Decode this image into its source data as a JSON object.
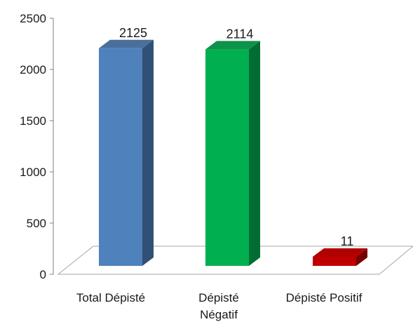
{
  "chart_data": {
    "type": "bar",
    "categories": [
      "Total Dépisté",
      "Dépisté\nNégatif",
      "Dépisté Positif"
    ],
    "values": [
      2125,
      2114,
      11
    ],
    "data_labels": [
      "2125",
      "2114",
      "11"
    ],
    "colors": [
      "#4f81bd",
      "#00b050",
      "#c00000"
    ],
    "yticks": [
      "0",
      "500",
      "1000",
      "1500",
      "2000",
      "2500"
    ],
    "ylim": [
      0,
      2500
    ],
    "style": "3d-column",
    "grid": false,
    "legend": "none",
    "title": "",
    "xlabel": "",
    "ylabel": ""
  }
}
